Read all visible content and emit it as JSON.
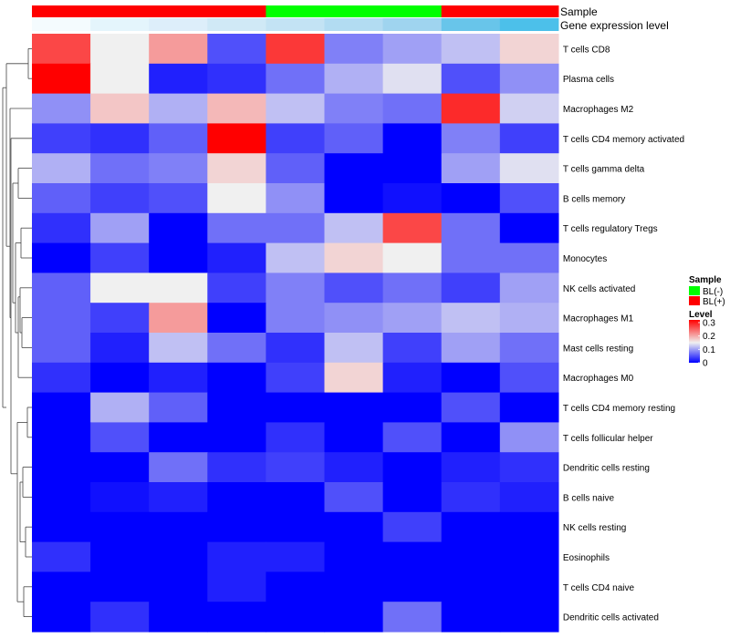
{
  "chart_data": {
    "type": "heatmap",
    "annotation_rows": {
      "sample_label": "Sample",
      "gene_label": "Gene expression level",
      "sample_groups": [
        "BL(+)",
        "BL(+)",
        "BL(+)",
        "BL(+)",
        "BL(-)",
        "BL(-)",
        "BL(-)",
        "BL(+)",
        "BL(+)"
      ],
      "gene_expression_colors": [
        "#f4fbfe",
        "#e4f5fc",
        "#ddeefa",
        "#d0e9f6",
        "#c3e3f4",
        "#b2dcf2",
        "#9fd4ef",
        "#68c5ea",
        "#4cc0ea"
      ]
    },
    "rows": [
      "T cells CD8",
      "Plasma cells",
      "Macrophages M2",
      "T cells CD4 memory activated",
      "T cells gamma delta",
      "B cells memory",
      "T cells regulatory  Tregs",
      "Monocytes",
      "NK cells activated",
      "Macrophages M1",
      "Mast cells resting",
      "Macrophages M0",
      "T cells CD4 memory resting",
      "T cells follicular helper",
      "Dendritic cells resting",
      "B cells naive",
      "NK cells resting",
      "Eosinophils",
      "T cells CD4 naive",
      "Dendritic cells activated"
    ],
    "values": [
      [
        0.27,
        0.15,
        0.21,
        0.05,
        0.28,
        0.08,
        0.1,
        0.12,
        0.17
      ],
      [
        0.32,
        0.15,
        0.02,
        0.03,
        0.07,
        0.11,
        0.14,
        0.05,
        0.09
      ],
      [
        0.09,
        0.18,
        0.11,
        0.19,
        0.12,
        0.08,
        0.07,
        0.29,
        0.13
      ],
      [
        0.04,
        0.03,
        0.06,
        0.32,
        0.04,
        0.06,
        0.0,
        0.08,
        0.04
      ],
      [
        0.11,
        0.07,
        0.08,
        0.17,
        0.06,
        0.0,
        0.0,
        0.1,
        0.14
      ],
      [
        0.06,
        0.04,
        0.05,
        0.15,
        0.09,
        0.0,
        0.01,
        0.0,
        0.05
      ],
      [
        0.03,
        0.1,
        0.0,
        0.07,
        0.07,
        0.12,
        0.27,
        0.07,
        0.0
      ],
      [
        0.0,
        0.04,
        0.0,
        0.02,
        0.12,
        0.17,
        0.15,
        0.07,
        0.07
      ],
      [
        0.06,
        0.15,
        0.15,
        0.04,
        0.08,
        0.05,
        0.07,
        0.04,
        0.1
      ],
      [
        0.06,
        0.04,
        0.21,
        0.0,
        0.08,
        0.09,
        0.1,
        0.12,
        0.11
      ],
      [
        0.06,
        0.02,
        0.12,
        0.07,
        0.03,
        0.12,
        0.04,
        0.1,
        0.07
      ],
      [
        0.03,
        0.0,
        0.02,
        0.0,
        0.04,
        0.17,
        0.02,
        0.0,
        0.05
      ],
      [
        0.0,
        0.11,
        0.06,
        0.0,
        0.0,
        0.0,
        0.0,
        0.05,
        0.0
      ],
      [
        0.0,
        0.05,
        0.0,
        0.0,
        0.03,
        0.0,
        0.05,
        0.0,
        0.09
      ],
      [
        0.0,
        0.0,
        0.07,
        0.03,
        0.04,
        0.02,
        0.0,
        0.02,
        0.03
      ],
      [
        0.0,
        0.01,
        0.02,
        0.0,
        0.0,
        0.05,
        0.0,
        0.03,
        0.02
      ],
      [
        0.0,
        0.0,
        0.0,
        0.0,
        0.0,
        0.0,
        0.04,
        0.0,
        0.0
      ],
      [
        0.03,
        0.0,
        0.0,
        0.02,
        0.02,
        0.0,
        0.0,
        0.0,
        0.0
      ],
      [
        0.0,
        0.0,
        0.0,
        0.02,
        0.0,
        0.0,
        0.0,
        0.0,
        0.0
      ],
      [
        0.0,
        0.03,
        0.0,
        0.0,
        0.0,
        0.0,
        0.07,
        0.0,
        0.0
      ]
    ],
    "color_scale": {
      "low": "#0000ff",
      "mid": "#f0f0f0",
      "high": "#ff0000",
      "min": 0,
      "mid_value": 0.15,
      "max": 0.32
    },
    "legend": {
      "sample_title": "Sample",
      "sample_entries": [
        {
          "label": "BL(-)",
          "color": "#00ff00"
        },
        {
          "label": "BL(+)",
          "color": "#ff0000"
        }
      ],
      "level_title": "Level",
      "level_ticks": [
        {
          "value": 0.3,
          "label": "0.3"
        },
        {
          "value": 0.2,
          "label": "0.2"
        },
        {
          "value": 0.1,
          "label": "0.1"
        },
        {
          "value": 0,
          "label": "0"
        }
      ]
    },
    "sample_colors": {
      "BL(+)": "#ff0000",
      "BL(-)": "#00ff00"
    }
  }
}
